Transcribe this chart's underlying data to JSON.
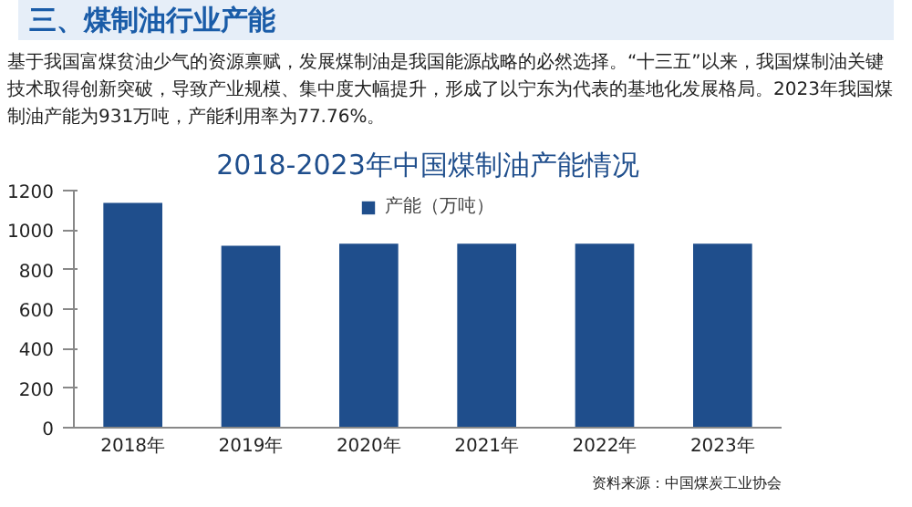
{
  "chart_data": {
    "type": "bar",
    "title": "2018-2023年中国煤制油产能情况",
    "subtitle": "基于我国富煤贫油少气的资源禀赋，发展煤制油是我国能源战略的必然选择。“十三五”以来，我国煤制油关键技术取得创新突破，导致产业规模、集中度大幅提升，形成了以宁东为代表的基地化发展格局。2023年我国煤制油产能为931万吨，产能利用率为77.76%。",
    "annotations": [
      "三、煤制油行业产能",
      "资料来源：中国煤炭工业协会"
    ],
    "categories": [
      "2018年",
      "2019年",
      "2020年",
      "2021年",
      "2022年",
      "2023年"
    ],
    "series": [
      {
        "name": "产能（万吨）",
        "color": "#1f4e8c",
        "values": [
          1138,
          921,
          931,
          931,
          931,
          931
        ]
      }
    ],
    "ylim": [
      0,
      1200
    ],
    "yticks": [
      0,
      200,
      400,
      600,
      800,
      1000,
      1200
    ],
    "grid": false,
    "legend": "top"
  }
}
